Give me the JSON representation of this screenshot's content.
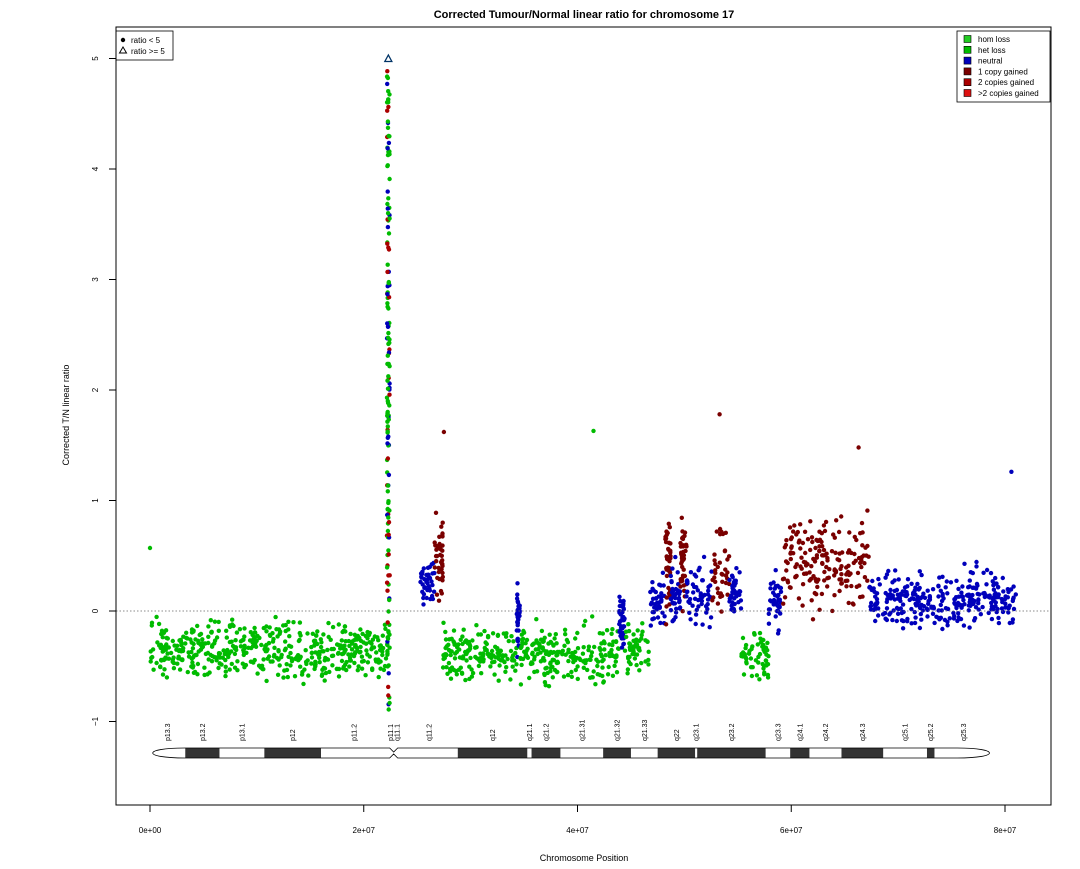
{
  "chart_data": {
    "type": "scatter",
    "title": "Corrected Tumour/Normal linear ratio for chromosome  17",
    "xlabel": "Chromosome Position",
    "ylabel": "Corrected T/N linear ratio",
    "xlim": [
      0,
      82000000
    ],
    "ylim": [
      -1.75,
      5.35
    ],
    "x_ticks": [
      0,
      20000000,
      40000000,
      60000000,
      80000000
    ],
    "x_tick_labels": [
      "0e+00",
      "2e+07",
      "4e+07",
      "6e+07",
      "8e+07"
    ],
    "y_ticks": [
      -1,
      0,
      1,
      2,
      3,
      4,
      5
    ],
    "y_tick_labels": [
      "−1",
      "0",
      "1",
      "2",
      "3",
      "4",
      "5"
    ],
    "reference_line": 0,
    "shape_legend": {
      "position": "top-left",
      "entries": [
        {
          "symbol": "filled-circle",
          "label": "ratio < 5"
        },
        {
          "symbol": "open-triangle",
          "label": "ratio >= 5"
        }
      ]
    },
    "legend": {
      "position": "top-right",
      "entries": [
        {
          "label": "hom loss",
          "color": "#22cc22"
        },
        {
          "label": "het loss",
          "color": "#00bb00"
        },
        {
          "label": "neutral",
          "color": "#0000bb"
        },
        {
          "label": "1 copy gained",
          "color": "#7a0000"
        },
        {
          "label": "2 copies gained",
          "color": "#aa0000"
        },
        {
          "label": ">2 copies gained",
          "color": "#dd1111"
        }
      ]
    },
    "segments": [
      {
        "state": "het loss",
        "start": 0,
        "end": 22300000,
        "mean": -0.35
      },
      {
        "state": "neutral",
        "start": 25300000,
        "end": 26600000,
        "mean": 0.25
      },
      {
        "state": "1 copy gained",
        "start": 26600000,
        "end": 27400000,
        "mean": 0.5
      },
      {
        "state": "het loss",
        "start": 27400000,
        "end": 34300000,
        "mean": -0.38
      },
      {
        "state": "neutral",
        "start": 34300000,
        "end": 34600000,
        "mean": -0.1
      },
      {
        "state": "het loss",
        "start": 34600000,
        "end": 43900000,
        "mean": -0.38
      },
      {
        "state": "neutral",
        "start": 43900000,
        "end": 44400000,
        "mean": -0.1
      },
      {
        "state": "het loss",
        "start": 44400000,
        "end": 46800000,
        "mean": -0.35
      },
      {
        "state": "neutral",
        "start": 46800000,
        "end": 48200000,
        "mean": 0.05
      },
      {
        "state": "1 copy gained",
        "start": 48200000,
        "end": 48700000,
        "mean": 0.4
      },
      {
        "state": "neutral",
        "start": 48700000,
        "end": 49600000,
        "mean": 0.15
      },
      {
        "state": "1 copy gained",
        "start": 49600000,
        "end": 50200000,
        "mean": 0.4
      },
      {
        "state": "neutral",
        "start": 50200000,
        "end": 52600000,
        "mean": 0.15
      },
      {
        "state": "1 copy gained",
        "start": 52600000,
        "end": 54200000,
        "mean": 0.4
      },
      {
        "state": "neutral",
        "start": 54200000,
        "end": 55300000,
        "mean": 0.15
      },
      {
        "state": "het loss",
        "start": 55300000,
        "end": 57900000,
        "mean": -0.4
      },
      {
        "state": "neutral",
        "start": 57900000,
        "end": 59200000,
        "mean": 0.1
      },
      {
        "state": "1 copy gained",
        "start": 59200000,
        "end": 67300000,
        "mean": 0.45
      },
      {
        "state": "neutral",
        "start": 67300000,
        "end": 81200000,
        "mean": 0.1
      }
    ],
    "centromere_spike": {
      "x": 22300000,
      "state": "mixed",
      "y_range": [
        -0.9,
        4.9
      ]
    },
    "outliers": [
      {
        "x": 22300000,
        "y": 5.0,
        "state": "neutral",
        "symbol": "open-triangle"
      },
      {
        "x": 41500000,
        "y": 1.63,
        "state": "het loss"
      },
      {
        "x": 53300000,
        "y": 1.78,
        "state": "1 copy gained"
      },
      {
        "x": 66300000,
        "y": 1.48,
        "state": "1 copy gained"
      },
      {
        "x": 80600000,
        "y": 1.26,
        "state": "neutral"
      },
      {
        "x": 27500000,
        "y": 1.62,
        "state": "1 copy gained"
      },
      {
        "x": 0,
        "y": 0.57,
        "state": "het loss"
      }
    ]
  },
  "ideogram": {
    "band_labels": [
      "p13.3",
      "p13.2",
      "p13.1",
      "p12",
      "p11.2",
      "p11.1",
      "q11.1",
      "q11.2",
      "q12",
      "q21.1",
      "q21.2",
      "q21.31",
      "q21.32",
      "q21.33",
      "q22",
      "q23.1",
      "q23.2",
      "q23.3",
      "q24.1",
      "q24.2",
      "q24.3",
      "q25.1",
      "q25.2",
      "q25.3"
    ],
    "bands": [
      {
        "name": "p13.3",
        "start": 0,
        "end": 3300000,
        "stain": "gneg"
      },
      {
        "name": "p13.2",
        "start": 3300000,
        "end": 6500000,
        "stain": "gpos"
      },
      {
        "name": "p13.1",
        "start": 6500000,
        "end": 10700000,
        "stain": "gneg"
      },
      {
        "name": "p12",
        "start": 10700000,
        "end": 16000000,
        "stain": "gpos"
      },
      {
        "name": "p11.2",
        "start": 16000000,
        "end": 22200000,
        "stain": "gneg"
      },
      {
        "name": "p11.1",
        "start": 22200000,
        "end": 22800000,
        "stain": "acen"
      },
      {
        "name": "q11.1",
        "start": 22800000,
        "end": 23400000,
        "stain": "acen"
      },
      {
        "name": "q11.2",
        "start": 23400000,
        "end": 28800000,
        "stain": "gneg"
      },
      {
        "name": "q12",
        "start": 28800000,
        "end": 35300000,
        "stain": "gpos"
      },
      {
        "name": "q21.1",
        "start": 35300000,
        "end": 35700000,
        "stain": "gneg"
      },
      {
        "name": "q21.2",
        "start": 35700000,
        "end": 38400000,
        "stain": "gpos"
      },
      {
        "name": "q21.31",
        "start": 38400000,
        "end": 42400000,
        "stain": "gneg"
      },
      {
        "name": "q21.32",
        "start": 42400000,
        "end": 45000000,
        "stain": "gpos"
      },
      {
        "name": "q21.33",
        "start": 45000000,
        "end": 47500000,
        "stain": "gneg"
      },
      {
        "name": "q22",
        "start": 47500000,
        "end": 51000000,
        "stain": "gpos"
      },
      {
        "name": "q23.1",
        "start": 51000000,
        "end": 51200000,
        "stain": "gneg"
      },
      {
        "name": "q23.2",
        "start": 51200000,
        "end": 57600000,
        "stain": "gpos"
      },
      {
        "name": "q23.3",
        "start": 57600000,
        "end": 59900000,
        "stain": "gneg"
      },
      {
        "name": "q24.1",
        "start": 59900000,
        "end": 61700000,
        "stain": "gpos"
      },
      {
        "name": "q24.2",
        "start": 61700000,
        "end": 64700000,
        "stain": "gneg"
      },
      {
        "name": "q24.3",
        "start": 64700000,
        "end": 68600000,
        "stain": "gpos"
      },
      {
        "name": "q25.1",
        "start": 68600000,
        "end": 72700000,
        "stain": "gneg"
      },
      {
        "name": "q25.2",
        "start": 72700000,
        "end": 73400000,
        "stain": "gpos"
      },
      {
        "name": "q25.3",
        "start": 73400000,
        "end": 78800000,
        "stain": "gneg"
      }
    ]
  }
}
